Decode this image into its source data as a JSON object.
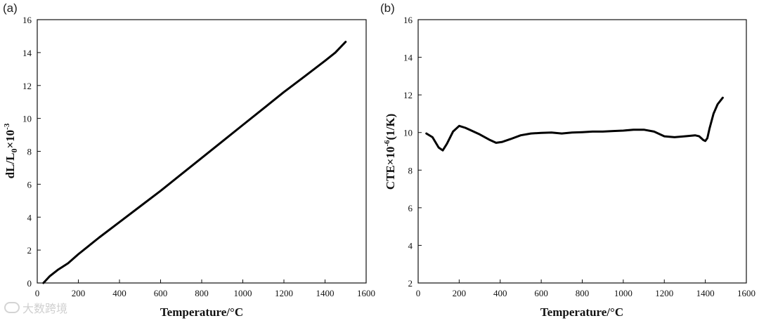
{
  "watermark": {
    "text": "大数跨境"
  },
  "chart_data": [
    {
      "type": "line",
      "panel_label": "(a)",
      "xlabel": "Temperature/°C",
      "ylabel": "dL/L0×10-3",
      "xlim": [
        0,
        1600
      ],
      "ylim": [
        0,
        16
      ],
      "xticks": [
        0,
        200,
        400,
        600,
        800,
        1000,
        1200,
        1400,
        1600
      ],
      "yticks": [
        0,
        2,
        4,
        6,
        8,
        10,
        12,
        14,
        16
      ],
      "grid": false,
      "series": [
        {
          "x": [
            30,
            60,
            100,
            150,
            200,
            300,
            400,
            500,
            600,
            700,
            800,
            900,
            1000,
            1100,
            1200,
            1300,
            1400,
            1450,
            1500
          ],
          "y": [
            0,
            0.4,
            0.8,
            1.2,
            1.75,
            2.75,
            3.7,
            4.65,
            5.6,
            6.6,
            7.6,
            8.6,
            9.6,
            10.6,
            11.6,
            12.55,
            13.5,
            14.0,
            14.65
          ]
        }
      ]
    },
    {
      "type": "line",
      "panel_label": "(b)",
      "xlabel": "Temperature/°C",
      "ylabel": "CTE×10-6(1/K)",
      "xlim": [
        0,
        1600
      ],
      "ylim": [
        2,
        16
      ],
      "xticks": [
        0,
        200,
        400,
        600,
        800,
        1000,
        1200,
        1400,
        1600
      ],
      "yticks": [
        2,
        4,
        6,
        8,
        10,
        12,
        14,
        16
      ],
      "grid": false,
      "series": [
        {
          "x": [
            40,
            70,
            100,
            120,
            140,
            170,
            200,
            230,
            260,
            300,
            350,
            380,
            410,
            450,
            500,
            550,
            600,
            650,
            700,
            750,
            800,
            850,
            900,
            950,
            1000,
            1050,
            1100,
            1150,
            1200,
            1250,
            1300,
            1350,
            1370,
            1390,
            1400,
            1410,
            1420,
            1440,
            1460,
            1485
          ],
          "y": [
            9.95,
            9.75,
            9.2,
            9.05,
            9.4,
            10.05,
            10.35,
            10.25,
            10.1,
            9.9,
            9.6,
            9.45,
            9.5,
            9.65,
            9.85,
            9.95,
            9.98,
            10.0,
            9.95,
            10.0,
            10.02,
            10.05,
            10.05,
            10.08,
            10.1,
            10.15,
            10.15,
            10.05,
            9.8,
            9.75,
            9.8,
            9.85,
            9.8,
            9.6,
            9.55,
            9.7,
            10.2,
            11.0,
            11.5,
            11.85
          ]
        }
      ]
    }
  ]
}
